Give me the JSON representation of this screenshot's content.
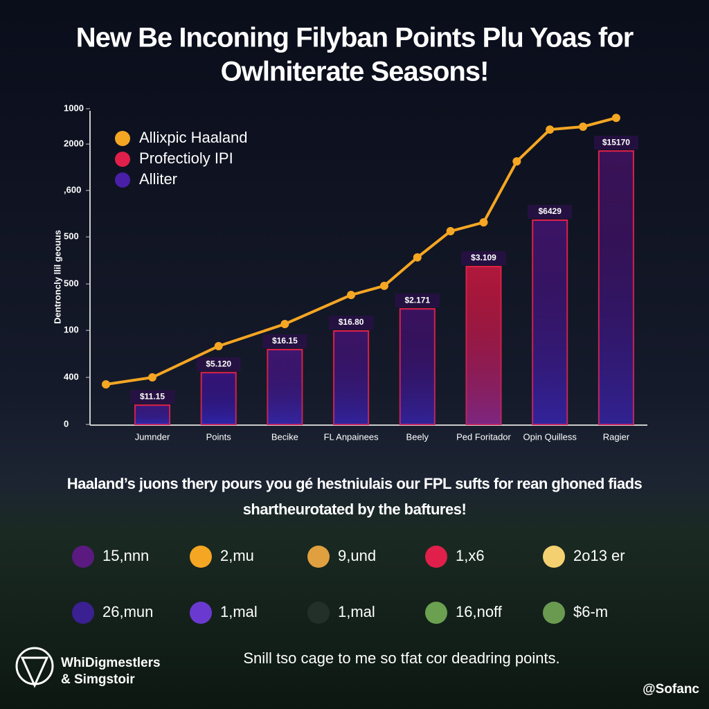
{
  "chart_data": {
    "type": "bar",
    "title": [
      "New Be Inconing Filyban Points Plu Yoas for",
      "Owlniterate Seasons!"
    ],
    "y_label": "Dentroncly llil geouus",
    "categories": [
      "Jumnder",
      "Points",
      "Becike",
      "FL Anpainees",
      "Beely",
      "Ped Foritador",
      "Opin Quilless",
      "Ragier"
    ],
    "values": [
      61,
      164,
      237,
      296,
      366,
      500,
      647,
      866
    ],
    "bar_tags": [
      "$11.15",
      "$5.120",
      "$16.15",
      "$16.80",
      "$2.171",
      "$3.109",
      "$6429",
      "$15170"
    ],
    "colors": [
      "#3a1a80",
      "#35157a",
      "#3e1670",
      "#3c1468",
      "#3a1260",
      "#b0183c",
      "#3c1466",
      "#3a1258"
    ],
    "line": {
      "color": "#f5a623",
      "x": [
        -0.7,
        0,
        1,
        2,
        3,
        3.5,
        4,
        4.5,
        5,
        5.5,
        6,
        6.5,
        7
      ],
      "values": [
        127,
        149,
        248,
        318,
        410,
        439,
        529,
        612,
        640,
        833,
        934,
        943,
        971
      ]
    },
    "legend": [
      {
        "name": "Allixpic Haaland",
        "color": "#f5a623"
      },
      {
        "name": "Profectioly IPI",
        "color": "#e0204a"
      },
      {
        "name": "Alliter",
        "color": "#4a1fa8"
      }
    ],
    "ylim": [
      0,
      1000
    ],
    "yticks": [
      0,
      {
        "value": 149,
        "label": "400"
      },
      {
        "value": 298,
        "label": "100"
      },
      {
        "value": 445,
        "label": "500"
      },
      {
        "value": 594,
        "label": "500"
      },
      {
        "value": 741,
        "label": ",600"
      },
      {
        "value": 888,
        "label": "2000"
      },
      1000
    ]
  },
  "caption": [
    "Haaland’s juons thery pours you gé hestniulais our FPL sufts for rean ghoned fiads",
    "shartheurotated by the baftures!"
  ],
  "stats": [
    {
      "label": "15,nnn",
      "color": "#5a1a80"
    },
    {
      "label": "2,mu",
      "color": "#f5a623"
    },
    {
      "label": "9,und",
      "color": "#e0a040"
    },
    {
      "label": "1,x6",
      "color": "#e0204a"
    },
    {
      "label": "2o13 er",
      "color": "#f5d070"
    },
    {
      "label": "26,mun",
      "color": "#3a2090"
    },
    {
      "label": "1,mal",
      "color": "#6a3ad0"
    },
    {
      "label": "1,mal",
      "color": "#23302a"
    },
    {
      "label": "16,noff",
      "color": "#6aa050"
    },
    {
      "label": "$6-m",
      "color": "#6a9a50"
    }
  ],
  "footer": "Snill tso cage to me so tfat cor deadring points.",
  "brand": [
    "WhiDigmestlers",
    "& Simgstoir"
  ],
  "handle": "@Sofanc"
}
